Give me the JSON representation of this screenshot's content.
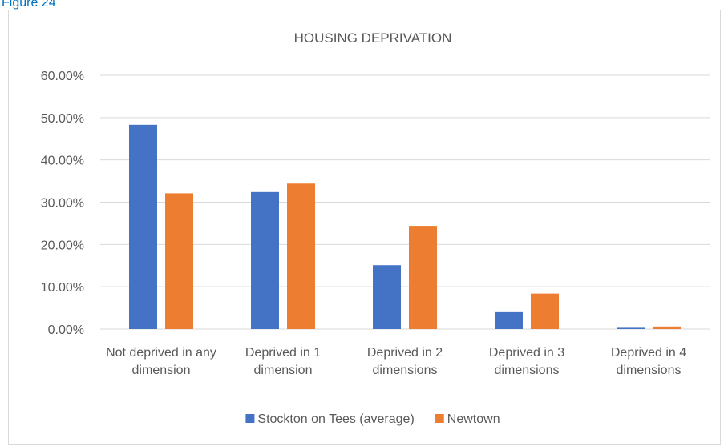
{
  "figure_label": "Figure 24",
  "chart_data": {
    "type": "bar",
    "title": "HOUSING DEPRIVATION",
    "categories": [
      "Not deprived in any dimension",
      "Deprived in 1 dimension",
      "Deprived in 2 dimensions",
      "Deprived in 3 dimensions",
      "Deprived in 4 dimensions"
    ],
    "series": [
      {
        "name": "Stockton on Tees (average)",
        "color": "#4472c4",
        "values": [
          48.3,
          32.4,
          15.1,
          4.0,
          0.3
        ]
      },
      {
        "name": "Newtown",
        "color": "#ed7d31",
        "values": [
          32.1,
          34.4,
          24.4,
          8.4,
          0.6
        ]
      }
    ],
    "ylim": [
      0,
      60
    ],
    "yticks": [
      {
        "value": 0,
        "label": "0.00%"
      },
      {
        "value": 10,
        "label": "10.00%"
      },
      {
        "value": 20,
        "label": "20.00%"
      },
      {
        "value": 30,
        "label": "30.00%"
      },
      {
        "value": 40,
        "label": "40.00%"
      },
      {
        "value": 50,
        "label": "50.00%"
      },
      {
        "value": 60,
        "label": "60.00%"
      }
    ],
    "grid": true,
    "legend": "bottom"
  }
}
